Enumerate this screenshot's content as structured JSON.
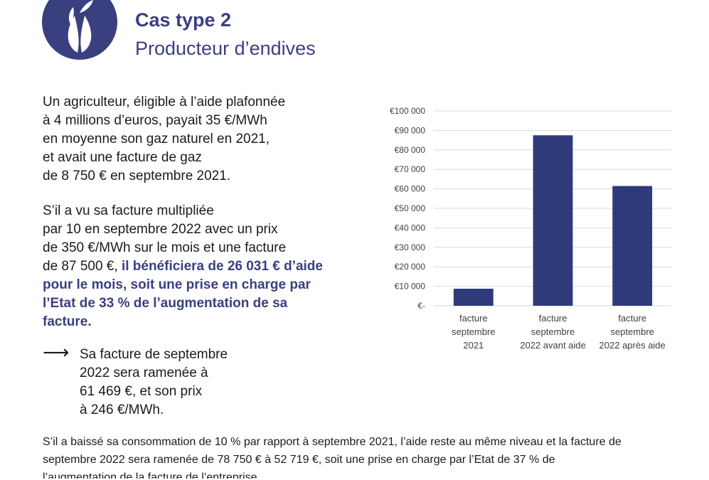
{
  "header": {
    "title": "Cas type 2",
    "subtitle": "Producteur d’endives",
    "logo_icon": "endive-icon"
  },
  "intro": {
    "lines": [
      "Un agriculteur, éligible à l’aide plafonnée",
      "à 4 millions d’euros, payait 35 €/MWh",
      "en moyenne son gaz naturel en 2021,",
      "et avait une facture de gaz",
      "de 8 750 € en septembre 2021."
    ]
  },
  "scenario": {
    "lines": [
      "S’il a vu sa facture multipliée",
      "par 10 en septembre 2022 avec un prix",
      "de 350 €/MWh sur le mois et une facture"
    ],
    "line4_start": "de 87 500 €, ",
    "line4_highlight": "il bénéficiera de 26 031 € d’aide",
    "highlight_lines": [
      "pour le mois, soit une prise en charge par",
      "l’Etat de 33 % de l’augmentation de sa",
      "facture."
    ]
  },
  "result": {
    "arrow_icon": "arrow-right-icon",
    "lines": [
      "Sa facture de septembre",
      "2022 sera ramenée à",
      "61 469 €, et son prix",
      "à 246 €/MWh."
    ]
  },
  "footer": {
    "lines": [
      "S’il a baissé sa consommation de 10 % par rapport à septembre 2021, l’aide reste au même niveau et la facture de",
      "septembre 2022 sera ramenée de 78 750 € à 52 719 €, soit une prise en charge par l’Etat de 37 % de",
      "l’augmentation de la facture de l’entreprise."
    ]
  },
  "chart_data": {
    "type": "bar",
    "categories": [
      [
        "facture",
        "septembre",
        "2021"
      ],
      [
        "facture",
        "septembre",
        "2022 avant aide"
      ],
      [
        "facture",
        "septembre",
        "2022 après aide"
      ]
    ],
    "values": [
      8750,
      87500,
      61469
    ],
    "ylim": [
      0,
      100000
    ],
    "y_ticks": [
      0,
      10000,
      20000,
      30000,
      40000,
      50000,
      60000,
      70000,
      80000,
      90000,
      100000
    ],
    "y_tick_labels": [
      "€-",
      "€10 000",
      "€20 000",
      "€30 000",
      "€40 000",
      "€50 000",
      "€60 000",
      "€70 000",
      "€80 000",
      "€90 000",
      "€100 000"
    ],
    "grid": true,
    "bar_color": "#2e3a7a",
    "grid_color": "#d9d9d9",
    "tick_color": "#404040"
  }
}
